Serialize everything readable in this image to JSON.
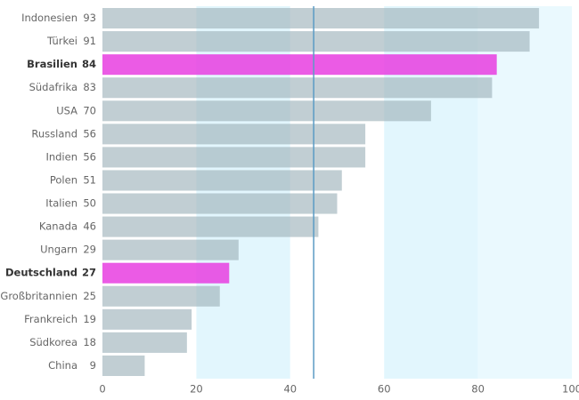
{
  "chart_data": {
    "type": "bar",
    "orientation": "horizontal",
    "categories": [
      "Indonesien",
      "Türkei",
      "Brasilien",
      "Südafrika",
      "USA",
      "Russland",
      "Indien",
      "Polen",
      "Italien",
      "Kanada",
      "Ungarn",
      "Deutschland",
      "Großbritannien",
      "Frankreich",
      "Südkorea",
      "China"
    ],
    "values": [
      93,
      91,
      84,
      83,
      70,
      56,
      56,
      51,
      50,
      46,
      29,
      27,
      25,
      19,
      18,
      9
    ],
    "color": "#9fb3bb",
    "colors": [
      "#9fb3bb",
      "#9fb3bb",
      "#e83ee0",
      "#9fb3bb",
      "#9fb3bb",
      "#9fb3bb",
      "#9fb3bb",
      "#9fb3bb",
      "#9fb3bb",
      "#9fb3bb",
      "#9fb3bb",
      "#e83ee0",
      "#9fb3bb",
      "#9fb3bb",
      "#9fb3bb",
      "#9fb3bb"
    ],
    "reference_line": 45,
    "xlim": [
      0,
      100
    ],
    "xticks": [
      0,
      20,
      40,
      60,
      80,
      100
    ]
  }
}
